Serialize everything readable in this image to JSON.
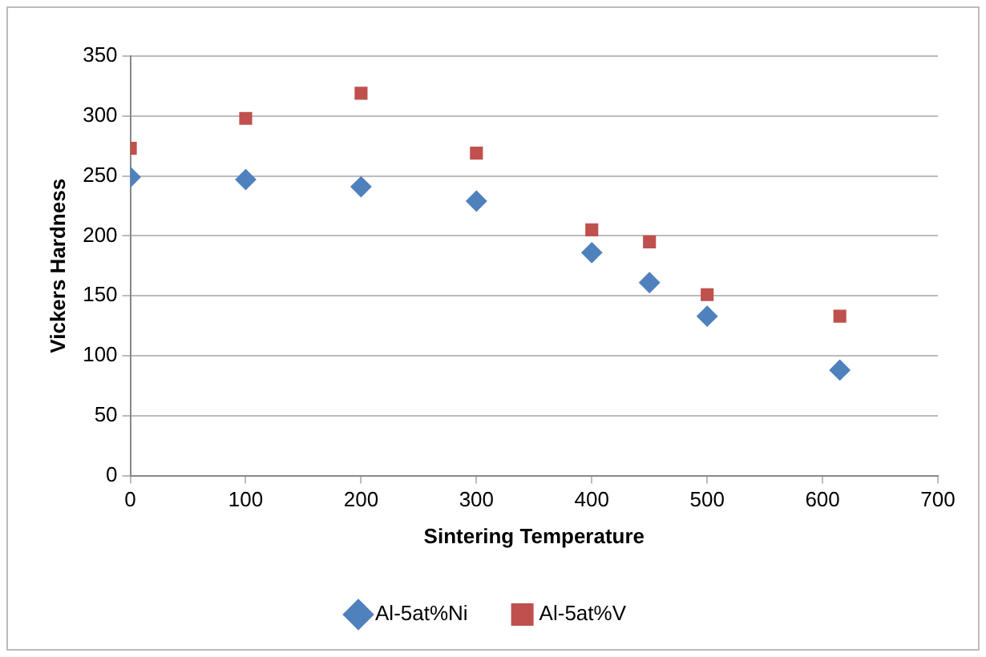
{
  "chart_data": {
    "type": "scatter",
    "xlabel": "Sintering Temperature",
    "ylabel": "Vickers Hardness",
    "xlim": [
      0,
      700
    ],
    "xticks": [
      0,
      100,
      200,
      300,
      400,
      500,
      600,
      700
    ],
    "ylim": [
      0,
      350
    ],
    "yticks": [
      0,
      50,
      100,
      150,
      200,
      250,
      300,
      350
    ],
    "grid": "y",
    "legend": "bottom",
    "series": [
      {
        "name": "Al-5at%Ni",
        "color": "#4f81bd",
        "marker": "diamond",
        "x": [
          0,
          100,
          200,
          300,
          400,
          450,
          500,
          615
        ],
        "values": [
          249,
          247,
          241,
          229,
          186,
          161,
          133,
          88
        ]
      },
      {
        "name": "Al-5at%V",
        "color": "#c0504d",
        "marker": "square",
        "x": [
          0,
          100,
          200,
          300,
          400,
          450,
          500,
          615
        ],
        "values": [
          273,
          298,
          319,
          269,
          205,
          195,
          151,
          133
        ]
      }
    ]
  }
}
